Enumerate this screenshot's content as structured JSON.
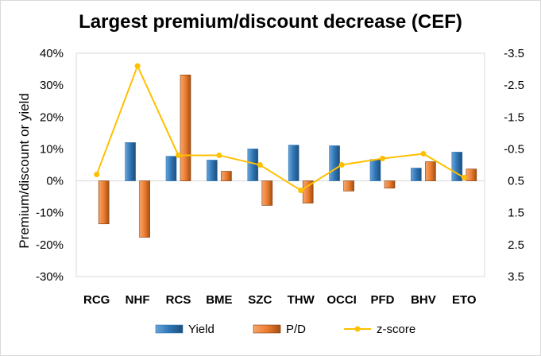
{
  "chart_data": {
    "type": "bar",
    "title": "Largest premium/discount decrease (CEF)",
    "ylabel": "Premium/discount or yield",
    "ylim": [
      -0.3,
      0.4
    ],
    "y_ticks": [
      "40%",
      "30%",
      "20%",
      "10%",
      "0%",
      "-10%",
      "-20%",
      "-30%"
    ],
    "y2lim": [
      -3.5,
      3.5
    ],
    "y2_reversed": true,
    "y2_ticks": [
      "-3.5",
      "-2.5",
      "-1.5",
      "-0.5",
      "0.5",
      "1.5",
      "2.5",
      "3.5"
    ],
    "categories": [
      "RCG",
      "NHF",
      "RCS",
      "BME",
      "SZC",
      "THW",
      "OCCI",
      "PFD",
      "BHV",
      "ETO"
    ],
    "series": [
      {
        "name": "Yield",
        "type": "bar",
        "color": "#2e75b6",
        "values": [
          0.0,
          0.12,
          0.077,
          0.065,
          0.1,
          0.112,
          0.11,
          0.067,
          0.04,
          0.09
        ]
      },
      {
        "name": "P/D",
        "type": "bar",
        "color": "#ed7d31",
        "values": [
          -0.135,
          -0.177,
          0.332,
          0.03,
          -0.077,
          -0.07,
          -0.032,
          -0.023,
          0.06,
          0.037
        ]
      },
      {
        "name": "z-score",
        "type": "line",
        "axis": "secondary",
        "color": "#ffc000",
        "values": [
          0.3,
          -3.1,
          -0.3,
          -0.3,
          0.0,
          0.8,
          0.0,
          -0.2,
          -0.35,
          0.4
        ]
      }
    ],
    "grid": false,
    "legend": "bottom"
  }
}
